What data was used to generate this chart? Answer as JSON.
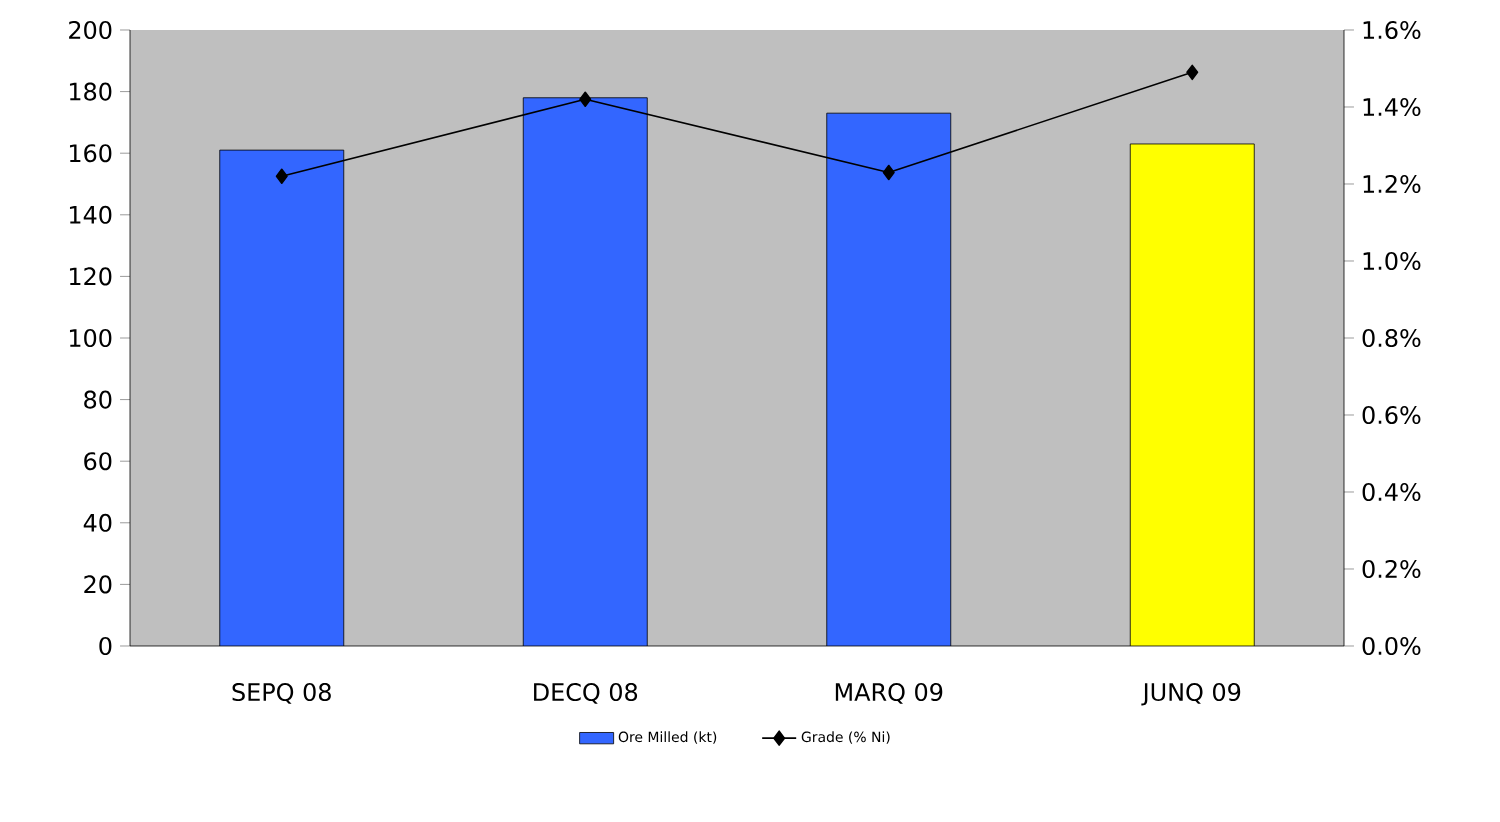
{
  "chart_data": {
    "type": "bar",
    "categories": [
      "SEPQ 08",
      "DECQ 08",
      "MARQ 09",
      "JUNQ 09"
    ],
    "series": [
      {
        "name": "Ore Milled (kt)",
        "color": "#3366ff",
        "colors": [
          "#3366ff",
          "#3366ff",
          "#3366ff",
          "#ffff00"
        ],
        "values": [
          161,
          178,
          173,
          163
        ]
      },
      {
        "name": "Grade (% Ni)",
        "type": "line",
        "axis": "y2",
        "color": "#000000",
        "marker": "diamond",
        "values": [
          1.22,
          1.42,
          1.23,
          1.49
        ]
      }
    ],
    "ylim": [
      0,
      200
    ],
    "yticks": [
      0,
      20,
      40,
      60,
      80,
      100,
      120,
      140,
      160,
      180,
      200
    ],
    "y2lim": [
      0,
      1.6
    ],
    "y2ticks": [
      {
        "value": 0,
        "label": "0.0%"
      },
      {
        "value": 0.2,
        "label": "0.2%"
      },
      {
        "value": 0.4,
        "label": "0.4%"
      },
      {
        "value": 0.6,
        "label": "0.6%"
      },
      {
        "value": 0.8,
        "label": "0.8%"
      },
      {
        "value": 1.0,
        "label": "1.0%"
      },
      {
        "value": 1.2,
        "label": "1.2%"
      },
      {
        "value": 1.4,
        "label": "1.4%"
      },
      {
        "value": 1.6,
        "label": "1.6%"
      }
    ],
    "grid": false,
    "legend": "bottom"
  }
}
